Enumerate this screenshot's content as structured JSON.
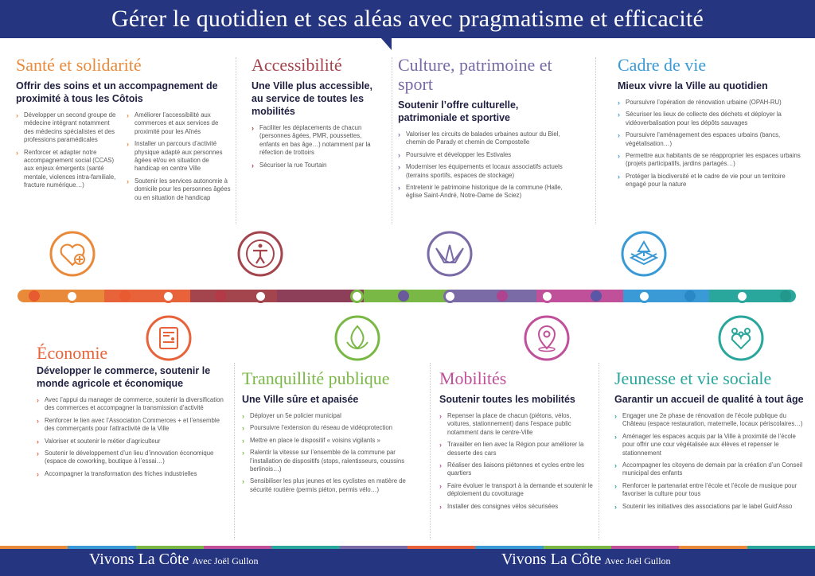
{
  "title": "Gérer le quotidien et ses aléas avec pragmatisme et efficacité",
  "colors": {
    "navy": "#25357f",
    "sante": "#e98a3b",
    "accessibilite": "#a4444d",
    "culture": "#7a6aa6",
    "cadre": "#3a9ad6",
    "economie": "#e8623a",
    "tranquillite": "#7ab846",
    "mobilites": "#c0509a",
    "jeunesse": "#2aa79c"
  },
  "sections": {
    "sante": {
      "title": "Santé et solidarité",
      "subtitle": "Offrir des soins et un accompagnement de proximité à tous les Côtois",
      "col1": [
        "Développer un second groupe de médecine intégrant notamment des médecins spécialistes et des professions paramédicales",
        "Renforcer et adapter notre accompagnement social (CCAS) aux enjeux émergents (santé mentale, violences intra-familiale, fracture numérique…)"
      ],
      "col2": [
        "Améliorer l’accessibilité aux commerces et aux services de proximité pour les Aînés",
        "Installer un parcours d’activité physique adapté aux personnes âgées et/ou en situation de handicap en centre Ville",
        "Soutenir les services autonomie à domicile pour les personnes âgées ou en situation de handicap"
      ]
    },
    "accessibilite": {
      "title": "Accessibilité",
      "subtitle": "Une Ville plus accessible, au service de toutes les mobilités",
      "items": [
        "Faciliter les déplacements de chacun (personnes âgées, PMR, poussettes, enfants en bas âge…) notamment par la réfection de trottoirs",
        "Sécuriser la rue Tourtain"
      ]
    },
    "culture": {
      "title": "Culture, patrimoine et sport",
      "subtitle": "Soutenir l’offre culturelle, patrimoniale et sportive",
      "items": [
        "Valoriser les circuits de balades urbaines autour du Biel, chemin de Parady et chemin de Compostelle",
        "Poursuivre et développer les Estivales",
        "Moderniser les équipements et locaux associatifs actuels (terrains sportifs, espaces de stockage)",
        "Entretenir le patrimoine historique de la commune (Halle, église Saint-André, Notre-Dame de Sciez)"
      ]
    },
    "cadre": {
      "title": "Cadre de vie",
      "subtitle": "Mieux vivre la Ville au quotidien",
      "items": [
        "Poursuivre l’opération de rénovation urbaine (OPAH-RU)",
        "Sécuriser les lieux de collecte des déchets et déployer la vidéoverbalisation pour les dépôts sauvages",
        "Poursuivre l’aménagement des espaces urbains (bancs, végétalisation…)",
        "Permettre aux habitants de se réapproprier les espaces urbains (projets participatifs, jardins partagés…)",
        "Protéger la biodiversité et le cadre de vie pour un territoire engagé pour la nature"
      ]
    },
    "economie": {
      "title": "Économie",
      "subtitle": "Développer le commerce, soutenir le monde agricole et économique",
      "items": [
        "Avec l’appui du manager de commerce, soutenir la diversification des commerces et accompagner la transmission d’activité",
        "Renforcer le lien avec l’Association Commerces + et l’ensemble des commerçants pour l’attractivité de la Ville",
        "Valoriser et soutenir le métier d’agriculteur",
        "Soutenir le développement d’un lieu d’innovation économique (espace de coworking, boutique à l’essai…)",
        "Accompagner la transformation des friches industrielles"
      ]
    },
    "tranquillite": {
      "title": "Tranquillité publique",
      "subtitle": "Une Ville sûre et apaisée",
      "items": [
        "Déployer un 5e policier municipal",
        "Poursuivre l’extension du réseau de vidéoprotection",
        "Mettre en place le dispositif « voisins vigilants »",
        "Ralentir la vitesse sur l’ensemble de la commune par l’installation de dispositifs (stops, ralentisseurs, coussins berlinois…)",
        "Sensibiliser les plus jeunes et les cyclistes en matière de sécurité routière (permis piéton, permis vélo…)"
      ]
    },
    "mobilites": {
      "title": "Mobilités",
      "subtitle": "Soutenir toutes les mobilités",
      "items": [
        "Repenser la place de chacun (piétons, vélos, voitures, stationnement) dans l’espace public notamment dans le centre-Ville",
        "Travailler en lien avec la Région pour améliorer la desserte des cars",
        "Réaliser des liaisons piétonnes et cycles entre les quartiers",
        "Faire évoluer le transport à la demande et soutenir le déploiement du covoiturage",
        "Installer des consignes vélos sécurisées"
      ]
    },
    "jeunesse": {
      "title": "Jeunesse et vie sociale",
      "subtitle": "Garantir un accueil de qualité à tout âge",
      "items": [
        "Engager une 2e phase de rénovation de l’école publique du Château (espace restauration, maternelle, locaux périscolaires…)",
        "Aménager les espaces acquis par la Ville à proximité de l’école pour offrir une cour végétalisée aux élèves et repenser le stationnement",
        "Accompagner les citoyens de demain par la création d’un Conseil municipal des enfants",
        "Renforcer le partenariat entre l’école et l’école de musique pour favoriser la culture pour tous",
        "Soutenir les initiatives des associations par le label Guid’Asso"
      ]
    }
  },
  "icons": {
    "sante": "heart-plus-icon",
    "accessibilite": "accessibility-person-icon",
    "culture": "origami-crane-icon",
    "cadre": "layered-tree-icon",
    "economie": "shop-device-icon",
    "tranquillite": "flame-leaf-icon",
    "mobilites": "map-pin-icon",
    "jeunesse": "family-heart-icon"
  },
  "footer": {
    "brand_left": "Vivons La Côte",
    "brand_left_small": "Avec Joël Gullon",
    "brand_right": "Vivons La Côte",
    "brand_right_small": "Avec Joël Gullon"
  }
}
